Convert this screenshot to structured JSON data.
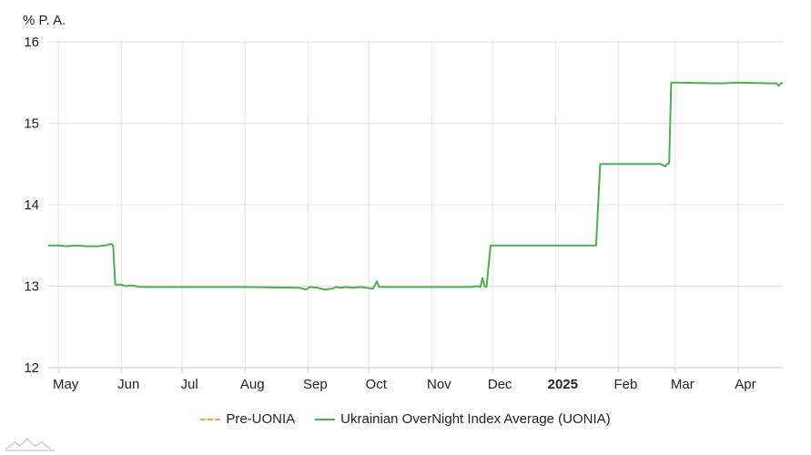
{
  "chart_data": {
    "type": "line",
    "unit_label": "% P. A.",
    "ylim": [
      12,
      16
    ],
    "y_ticks": [
      "12",
      "13",
      "14",
      "15",
      "16"
    ],
    "x_ticks": [
      {
        "label": "May",
        "date": "2024-05-01",
        "bold": false
      },
      {
        "label": "Jun",
        "date": "2024-06-01",
        "bold": false
      },
      {
        "label": "Jul",
        "date": "2024-07-01",
        "bold": false
      },
      {
        "label": "Aug",
        "date": "2024-08-01",
        "bold": false
      },
      {
        "label": "Sep",
        "date": "2024-09-01",
        "bold": false
      },
      {
        "label": "Oct",
        "date": "2024-10-01",
        "bold": false
      },
      {
        "label": "Nov",
        "date": "2024-11-01",
        "bold": false
      },
      {
        "label": "Dec",
        "date": "2024-12-01",
        "bold": false
      },
      {
        "label": "2025",
        "date": "2025-01-01",
        "bold": true
      },
      {
        "label": "Feb",
        "date": "2025-02-01",
        "bold": false
      },
      {
        "label": "Mar",
        "date": "2025-03-01",
        "bold": false
      },
      {
        "label": "Apr",
        "date": "2025-04-01",
        "bold": false
      }
    ],
    "x_range": [
      "2024-04-26",
      "2025-04-23"
    ],
    "grid": true,
    "legend_position": "bottom",
    "series": [
      {
        "name": "Pre-UONIA",
        "color": "#f4a534",
        "style": "dashed",
        "points": []
      },
      {
        "name": "Ukrainian OverNight Index Average (UONIA)",
        "color": "#4caf50",
        "style": "solid",
        "points": [
          [
            "2024-04-26",
            13.5
          ],
          [
            "2024-05-01",
            13.5
          ],
          [
            "2024-05-05",
            13.49
          ],
          [
            "2024-05-10",
            13.5
          ],
          [
            "2024-05-15",
            13.49
          ],
          [
            "2024-05-20",
            13.49
          ],
          [
            "2024-05-24",
            13.5
          ],
          [
            "2024-05-27",
            13.52
          ],
          [
            "2024-05-28",
            13.5
          ],
          [
            "2024-05-29",
            13.02
          ],
          [
            "2024-06-01",
            13.02
          ],
          [
            "2024-06-03",
            13.0
          ],
          [
            "2024-06-06",
            13.01
          ],
          [
            "2024-06-10",
            12.99
          ],
          [
            "2024-07-01",
            12.99
          ],
          [
            "2024-08-01",
            12.99
          ],
          [
            "2024-08-28",
            12.98
          ],
          [
            "2024-08-31",
            12.96
          ],
          [
            "2024-09-02",
            12.99
          ],
          [
            "2024-09-06",
            12.98
          ],
          [
            "2024-09-09",
            12.96
          ],
          [
            "2024-09-13",
            12.97
          ],
          [
            "2024-09-15",
            12.99
          ],
          [
            "2024-09-17",
            12.98
          ],
          [
            "2024-09-20",
            12.99
          ],
          [
            "2024-09-23",
            12.98
          ],
          [
            "2024-09-27",
            12.99
          ],
          [
            "2024-09-30",
            12.98
          ],
          [
            "2024-10-03",
            12.97
          ],
          [
            "2024-10-05",
            13.06
          ],
          [
            "2024-10-06",
            12.99
          ],
          [
            "2024-11-01",
            12.99
          ],
          [
            "2024-11-20",
            12.99
          ],
          [
            "2024-11-24",
            13.0
          ],
          [
            "2024-11-25",
            12.99
          ],
          [
            "2024-11-26",
            13.1
          ],
          [
            "2024-11-27",
            13.0
          ],
          [
            "2024-11-28",
            12.99
          ],
          [
            "2024-11-30",
            13.5
          ],
          [
            "2024-12-01",
            13.5
          ],
          [
            "2025-01-01",
            13.5
          ],
          [
            "2025-01-21",
            13.5
          ],
          [
            "2025-01-23",
            14.5
          ],
          [
            "2025-02-01",
            14.5
          ],
          [
            "2025-02-22",
            14.5
          ],
          [
            "2025-02-24",
            14.47
          ],
          [
            "2025-02-25",
            14.5
          ],
          [
            "2025-02-26",
            14.51
          ],
          [
            "2025-02-27",
            15.5
          ],
          [
            "2025-03-01",
            15.5
          ],
          [
            "2025-03-24",
            15.49
          ],
          [
            "2025-04-01",
            15.5
          ],
          [
            "2025-04-18",
            15.49
          ],
          [
            "2025-04-20",
            15.49
          ],
          [
            "2025-04-21",
            15.46
          ],
          [
            "2025-04-22",
            15.49
          ],
          [
            "2025-04-23",
            15.5
          ]
        ]
      }
    ]
  }
}
